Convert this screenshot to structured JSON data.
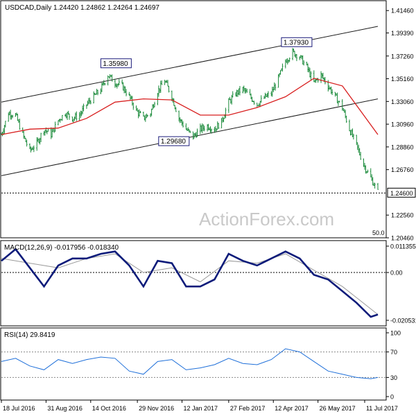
{
  "chart_data": [
    {
      "type": "candlestick",
      "symbol_title": "USDCAD,Daily",
      "ohlc": {
        "open": 1.2442,
        "high": 1.24862,
        "low": 1.24264,
        "close": 1.24697
      },
      "ohlc_text": "1.24420 1.24862 1.24264 1.24697",
      "ylim": [
        1.2046,
        1.4141
      ],
      "y_ticks": [
        "1.41460",
        "1.39390",
        "1.37260",
        "1.35160",
        "1.33060",
        "1.30960",
        "1.28860",
        "1.26760",
        "1.24600",
        "1.22560",
        "1.20460"
      ],
      "y_tick_values": [
        1.4146,
        1.3939,
        1.3726,
        1.3516,
        1.3306,
        1.3096,
        1.2886,
        1.2676,
        1.246,
        1.2256,
        1.2046
      ],
      "current_price_label": "1.24600",
      "current_price": 1.246,
      "annotations": [
        {
          "text": "1.35980",
          "x": "2016-11-08",
          "y": 1.3598
        },
        {
          "text": "1.37930",
          "x": "2017-05-05",
          "y": 1.3793
        },
        {
          "text": "1.29680",
          "x": "2017-01-04",
          "y": 1.2968
        }
      ],
      "channel_lines": [
        {
          "from": [
            "2016-07-18",
            1.33
          ],
          "to": [
            "2017-07-24",
            1.4
          ]
        },
        {
          "from": [
            "2016-07-18",
            1.262
          ],
          "to": [
            "2017-07-24",
            1.333
          ]
        }
      ],
      "ma_label": "50.0",
      "series": [
        {
          "key": "close",
          "x": [
            "2016-07-18",
            "2016-07-25",
            "2016-08-01",
            "2016-08-08",
            "2016-08-15",
            "2016-08-22",
            "2016-08-29",
            "2016-09-05",
            "2016-09-12",
            "2016-09-19",
            "2016-09-26",
            "2016-10-03",
            "2016-10-10",
            "2016-10-17",
            "2016-10-24",
            "2016-10-31",
            "2016-11-07",
            "2016-11-14",
            "2016-11-21",
            "2016-11-28",
            "2016-12-05",
            "2016-12-12",
            "2016-12-19",
            "2016-12-26",
            "2017-01-02",
            "2017-01-09",
            "2017-01-16",
            "2017-01-23",
            "2017-01-30",
            "2017-02-06",
            "2017-02-13",
            "2017-02-20",
            "2017-02-27",
            "2017-03-06",
            "2017-03-13",
            "2017-03-20",
            "2017-03-27",
            "2017-04-03",
            "2017-04-10",
            "2017-04-17",
            "2017-04-24",
            "2017-05-01",
            "2017-05-08",
            "2017-05-15",
            "2017-05-22",
            "2017-05-29",
            "2017-06-05",
            "2017-06-12",
            "2017-06-19",
            "2017-06-26",
            "2017-07-03",
            "2017-07-10",
            "2017-07-17",
            "2017-07-24"
          ],
          "values": [
            1.3,
            1.32,
            1.318,
            1.3,
            1.285,
            1.292,
            1.305,
            1.3,
            1.313,
            1.32,
            1.315,
            1.318,
            1.328,
            1.335,
            1.342,
            1.355,
            1.348,
            1.345,
            1.335,
            1.322,
            1.315,
            1.32,
            1.34,
            1.35,
            1.335,
            1.315,
            1.305,
            1.298,
            1.305,
            1.308,
            1.305,
            1.312,
            1.33,
            1.338,
            1.342,
            1.335,
            1.328,
            1.334,
            1.338,
            1.352,
            1.368,
            1.376,
            1.372,
            1.362,
            1.348,
            1.355,
            1.345,
            1.335,
            1.325,
            1.305,
            1.29,
            1.272,
            1.26,
            1.247
          ]
        },
        {
          "key": "ma50",
          "name": "50.0",
          "x": [
            "2016-07-18",
            "2016-08-15",
            "2016-09-12",
            "2016-10-10",
            "2016-11-07",
            "2016-12-05",
            "2017-01-02",
            "2017-01-30",
            "2017-02-27",
            "2017-03-27",
            "2017-04-24",
            "2017-05-22",
            "2017-06-19",
            "2017-07-24"
          ],
          "values": [
            1.3,
            1.305,
            1.306,
            1.315,
            1.33,
            1.333,
            1.332,
            1.318,
            1.318,
            1.325,
            1.335,
            1.352,
            1.345,
            1.3
          ]
        }
      ]
    },
    {
      "type": "line",
      "indicator": "MACD",
      "title": "MACD(12,26,9) -0.017956 -0.018340",
      "ylim": [
        -0.0205,
        0.0113
      ],
      "y_ticks": [
        "0.011355",
        "0.00",
        "-0.020531"
      ],
      "series": [
        {
          "key": "macd",
          "x": [
            "2016-07-18",
            "2016-08-01",
            "2016-08-15",
            "2016-08-29",
            "2016-09-12",
            "2016-09-26",
            "2016-10-10",
            "2016-10-24",
            "2016-11-07",
            "2016-11-21",
            "2016-12-05",
            "2016-12-19",
            "2017-01-02",
            "2017-01-16",
            "2017-01-30",
            "2017-02-13",
            "2017-02-27",
            "2017-03-13",
            "2017-03-27",
            "2017-04-10",
            "2017-04-24",
            "2017-05-08",
            "2017-05-22",
            "2017-06-05",
            "2017-06-19",
            "2017-07-03",
            "2017-07-17",
            "2017-07-24"
          ],
          "values": [
            0.005,
            0.01,
            0.002,
            -0.006,
            0.003,
            0.006,
            0.006,
            0.008,
            0.009,
            0.003,
            -0.006,
            0.005,
            0.004,
            -0.006,
            -0.006,
            -0.003,
            0.008,
            0.005,
            0.003,
            0.006,
            0.009,
            0.006,
            -0.001,
            -0.003,
            -0.008,
            -0.013,
            -0.019,
            -0.018
          ]
        },
        {
          "key": "signal",
          "x": [
            "2016-07-18",
            "2016-08-15",
            "2016-09-12",
            "2016-10-10",
            "2016-11-07",
            "2016-12-05",
            "2017-01-02",
            "2017-01-30",
            "2017-02-27",
            "2017-03-27",
            "2017-04-24",
            "2017-05-22",
            "2017-06-19",
            "2017-07-24"
          ],
          "values": [
            0.006,
            0.004,
            0.002,
            0.006,
            0.008,
            0.0,
            0.002,
            -0.004,
            0.005,
            0.004,
            0.008,
            0.001,
            -0.006,
            -0.018
          ]
        }
      ]
    },
    {
      "type": "line",
      "indicator": "RSI",
      "title": "RSI(14) 29.8419",
      "ylim": [
        0,
        100
      ],
      "y_ticks": [
        "100",
        "70",
        "30",
        "0"
      ],
      "levels": [
        70,
        30
      ],
      "series": [
        {
          "key": "rsi",
          "x": [
            "2016-07-18",
            "2016-08-01",
            "2016-08-15",
            "2016-08-29",
            "2016-09-12",
            "2016-09-26",
            "2016-10-10",
            "2016-10-24",
            "2016-11-07",
            "2016-11-21",
            "2016-12-05",
            "2016-12-19",
            "2017-01-02",
            "2017-01-16",
            "2017-01-30",
            "2017-02-13",
            "2017-02-27",
            "2017-03-13",
            "2017-03-27",
            "2017-04-10",
            "2017-04-24",
            "2017-05-08",
            "2017-05-22",
            "2017-06-05",
            "2017-06-19",
            "2017-07-03",
            "2017-07-17",
            "2017-07-24"
          ],
          "values": [
            55,
            60,
            48,
            42,
            58,
            52,
            58,
            62,
            60,
            40,
            35,
            55,
            58,
            42,
            45,
            50,
            60,
            52,
            50,
            58,
            75,
            70,
            55,
            40,
            35,
            30,
            28,
            30
          ]
        }
      ]
    }
  ],
  "x_axis": {
    "tick_labels": [
      "18 Jul 2016",
      "31 Aug 2016",
      "14 Oct 2016",
      "29 Nov 2016",
      "12 Jan 2017",
      "27 Feb 2017",
      "12 Apr 2017",
      "26 May 2017",
      "11 Jul 2017"
    ],
    "tick_dates": [
      "2016-07-18",
      "2016-08-31",
      "2016-10-14",
      "2016-11-29",
      "2017-01-12",
      "2017-02-27",
      "2017-04-12",
      "2017-05-26",
      "2017-07-11"
    ]
  },
  "watermark": "ActionForex.com",
  "colors": {
    "candle": "#1a8a3a",
    "ma": "#d81f1f",
    "macd": "#0c1b7a",
    "signal": "#9a9a9a",
    "rsi": "#1e6fd9",
    "channel": "#1a1a1a"
  }
}
